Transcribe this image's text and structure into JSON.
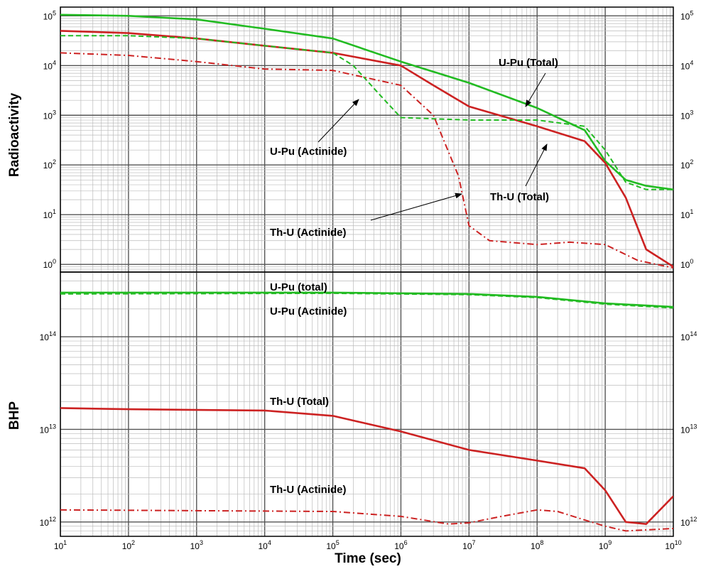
{
  "chart_data": [
    {
      "type": "line",
      "panel": "top",
      "xlabel": "",
      "ylabel": "Radioactivity",
      "xscale": "log",
      "yscale": "log",
      "xlim": [
        10,
        10000000000
      ],
      "ylim": [
        0.7,
        150000
      ],
      "x_tick_labels": [
        "10^1",
        "10^2",
        "10^3",
        "10^4",
        "10^5",
        "10^6",
        "10^7",
        "10^8",
        "10^9",
        "10^10"
      ],
      "y_tick_labels": [
        "10^0",
        "10^1",
        "10^2",
        "10^3",
        "10^4",
        "10^5"
      ],
      "grid": true,
      "series": [
        {
          "name": "U-Pu (Total)",
          "color": "#22bb22",
          "style": "solid",
          "x": [
            10,
            100,
            1000,
            10000,
            100000,
            1000000,
            10000000,
            100000000,
            500000000,
            1000000000,
            2000000000,
            4000000000,
            10000000000
          ],
          "y": [
            105000,
            100000,
            85000,
            55000,
            35000,
            12000,
            4500,
            1400,
            500,
            120,
            50,
            38,
            32
          ]
        },
        {
          "name": "Th-U (Total)",
          "color": "#cc2222",
          "style": "solid",
          "x": [
            10,
            100,
            1000,
            10000,
            100000,
            1000000,
            3000000,
            10000000,
            100000000,
            500000000,
            1000000000,
            2000000000,
            4000000000,
            10000000000
          ],
          "y": [
            50000,
            45000,
            35000,
            25000,
            18000,
            10000,
            4000,
            1500,
            600,
            300,
            110,
            22,
            2,
            0.9
          ]
        },
        {
          "name": "U-Pu (Actinide)",
          "color": "#22bb22",
          "style": "dashed",
          "x": [
            10,
            100,
            1000,
            10000,
            100000,
            200000,
            500000,
            1000000,
            10000000,
            100000000,
            500000000,
            1000000000,
            2000000000,
            4000000000,
            10000000000
          ],
          "y": [
            40000,
            40000,
            35000,
            25000,
            18000,
            10000,
            2500,
            900,
            800,
            800,
            600,
            200,
            45,
            32,
            32
          ]
        },
        {
          "name": "Th-U (Actinide)",
          "color": "#cc2222",
          "style": "dash-dot",
          "x": [
            10,
            100,
            1000,
            10000,
            100000,
            1000000,
            3000000,
            7000000,
            10000000,
            20000000,
            100000000,
            300000000,
            1000000000,
            3000000000,
            10000000000
          ],
          "y": [
            18000,
            16000,
            12000,
            8500,
            8000,
            4000,
            1000,
            60,
            6,
            3,
            2.5,
            2.8,
            2.5,
            1.2,
            0.85
          ]
        }
      ],
      "annotations": [
        "U-Pu (Total)",
        "U-Pu (Actinide)",
        "Th-U (Total)",
        "Th-U (Actinide)"
      ]
    },
    {
      "type": "line",
      "panel": "bottom",
      "xlabel": "Time (sec)",
      "ylabel": "BHP",
      "xscale": "log",
      "yscale": "log",
      "xlim": [
        10,
        10000000000
      ],
      "ylim": [
        700000000000,
        500000000000000
      ],
      "x_tick_labels": [
        "10^1",
        "10^2",
        "10^3",
        "10^4",
        "10^5",
        "10^6",
        "10^7",
        "10^8",
        "10^9",
        "10^10"
      ],
      "y_tick_labels": [
        "10^12",
        "10^13",
        "10^14"
      ],
      "grid": true,
      "series": [
        {
          "name": "U-Pu (total)",
          "color": "#22bb22",
          "style": "solid",
          "x": [
            10,
            100000,
            10000000,
            100000000,
            1000000000,
            10000000000
          ],
          "y": [
            300000000000000,
            300000000000000,
            290000000000000,
            270000000000000,
            230000000000000,
            210000000000000
          ]
        },
        {
          "name": "U-Pu (Actinide)",
          "color": "#22bb22",
          "style": "dashed",
          "x": [
            10,
            100000,
            10000000,
            100000000,
            1000000000,
            10000000000
          ],
          "y": [
            290000000000000,
            295000000000000,
            285000000000000,
            265000000000000,
            225000000000000,
            205000000000000
          ]
        },
        {
          "name": "Th-U (Total)",
          "color": "#cc2222",
          "style": "solid",
          "x": [
            10,
            100,
            10000,
            100000,
            1000000,
            10000000,
            100000000,
            500000000,
            1000000000,
            2000000000,
            4000000000,
            10000000000
          ],
          "y": [
            17000000000000,
            16500000000000,
            16000000000000,
            14000000000000,
            9500000000000,
            6000000000000,
            4600000000000,
            3800000000000,
            2200000000000,
            1000000000000,
            950000000000,
            1900000000000
          ]
        },
        {
          "name": "Th-U (Actinide)",
          "color": "#cc2222",
          "style": "dash-dot",
          "x": [
            10,
            100000,
            1000000,
            5000000,
            10000000,
            30000000,
            100000000,
            200000000,
            500000000,
            1000000000,
            2000000000,
            10000000000
          ],
          "y": [
            1350000000000,
            1300000000000,
            1150000000000,
            950000000000,
            980000000000,
            1150000000000,
            1350000000000,
            1300000000000,
            1050000000000,
            900000000000,
            800000000000,
            850000000000
          ]
        }
      ],
      "annotations": [
        "U-Pu (total)",
        "U-Pu (Actinide)",
        "Th-U (Total)",
        "Th-U (Actinide)"
      ]
    }
  ]
}
